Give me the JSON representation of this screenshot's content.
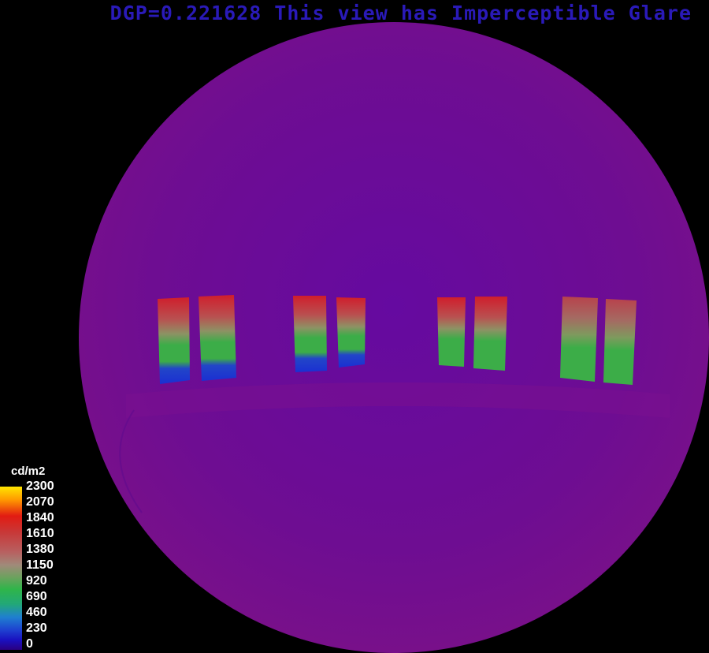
{
  "header": {
    "title": "DGP=0.221628 This view has Imperceptible Glare"
  },
  "legend": {
    "unit": "cd/m2",
    "ticks": [
      "2300",
      "2070",
      "1840",
      "1610",
      "1380",
      "1150",
      "920",
      "690",
      "460",
      "230",
      "0"
    ]
  },
  "colors": {
    "background": "#000000",
    "dome": "#6e0d92",
    "title": "#2a1ab8",
    "high": "#d4202a",
    "mid": "#3cad48",
    "low": "#1b2fd2"
  }
}
